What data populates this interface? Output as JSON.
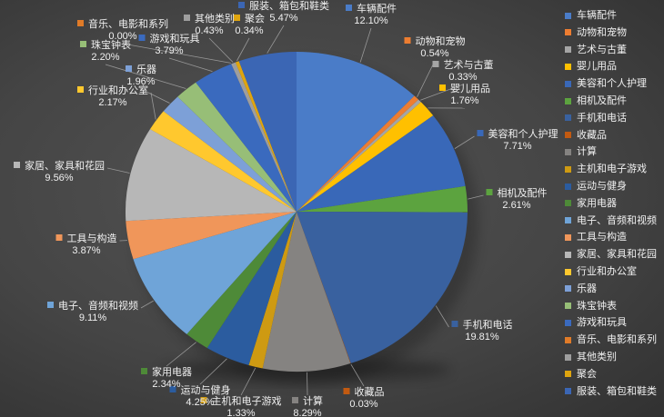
{
  "canvas": {
    "background_center": "#535353",
    "background_mid": "#454545",
    "background_edge": "#313131",
    "label_text_color": "#F0F0F0",
    "leader_line_color": "#A6A6A6",
    "shadow_color": "#000000"
  },
  "chart_data": {
    "type": "pie",
    "title": "",
    "legend_position": "right",
    "unit": "%",
    "start_angle_deg": 0,
    "direction": "clockwise",
    "slices": [
      {
        "label": "车辆配件",
        "value": 12.1,
        "pct_label": "12.10%",
        "color": "#4A7CC8"
      },
      {
        "label": "动物和宠物",
        "value": 0.54,
        "pct_label": "0.54%",
        "color": "#ED7D31"
      },
      {
        "label": "艺术与古董",
        "value": 0.33,
        "pct_label": "0.33%",
        "color": "#A5A5A5"
      },
      {
        "label": "婴儿用品",
        "value": 1.76,
        "pct_label": "1.76%",
        "color": "#FFC000"
      },
      {
        "label": "美容和个人护理",
        "value": 7.71,
        "pct_label": "7.71%",
        "color": "#3968B8"
      },
      {
        "label": "相机及配件",
        "value": 2.61,
        "pct_label": "2.61%",
        "color": "#5CA33F"
      },
      {
        "label": "手机和电话",
        "value": 19.81,
        "pct_label": "19.81%",
        "color": "#39619F"
      },
      {
        "label": "收藏品",
        "value": 0.03,
        "pct_label": "0.03%",
        "color": "#C25A11"
      },
      {
        "label": "计算",
        "value": 8.29,
        "pct_label": "8.29%",
        "color": "#858381"
      },
      {
        "label": "主机和电子游戏",
        "value": 1.33,
        "pct_label": "1.33%",
        "color": "#CE9A12"
      },
      {
        "label": "运动与健身",
        "value": 4.25,
        "pct_label": "4.25%",
        "color": "#2B5C9F"
      },
      {
        "label": "家用电器",
        "value": 2.34,
        "pct_label": "2.34%",
        "color": "#4E8A38"
      },
      {
        "label": "电子、音频和视频",
        "value": 9.11,
        "pct_label": "9.11%",
        "color": "#6FA4D8"
      },
      {
        "label": "工具与构造",
        "value": 3.87,
        "pct_label": "3.87%",
        "color": "#F0965A"
      },
      {
        "label": "家居、家具和花园",
        "value": 9.56,
        "pct_label": "9.56%",
        "color": "#B7B7B7"
      },
      {
        "label": "行业和办公室",
        "value": 2.17,
        "pct_label": "2.17%",
        "color": "#FFC82E"
      },
      {
        "label": "乐器",
        "value": 1.96,
        "pct_label": "1.96%",
        "color": "#7DA0D7"
      },
      {
        "label": "珠宝钟表",
        "value": 2.2,
        "pct_label": "2.20%",
        "color": "#97BE77"
      },
      {
        "label": "游戏和玩具",
        "value": 3.79,
        "pct_label": "3.79%",
        "color": "#3A6ABE"
      },
      {
        "label": "音乐、电影和系列",
        "value": 0.0,
        "pct_label": "0.00%",
        "color": "#E07B28"
      },
      {
        "label": "其他类别",
        "value": 0.43,
        "pct_label": "0.43%",
        "color": "#9E9E9E"
      },
      {
        "label": "聚会",
        "value": 0.34,
        "pct_label": "0.34%",
        "color": "#DFA50F"
      },
      {
        "label": "服装、箱包和鞋类",
        "value": 5.47,
        "pct_label": "5.47%",
        "color": "#3B66B4"
      }
    ]
  }
}
